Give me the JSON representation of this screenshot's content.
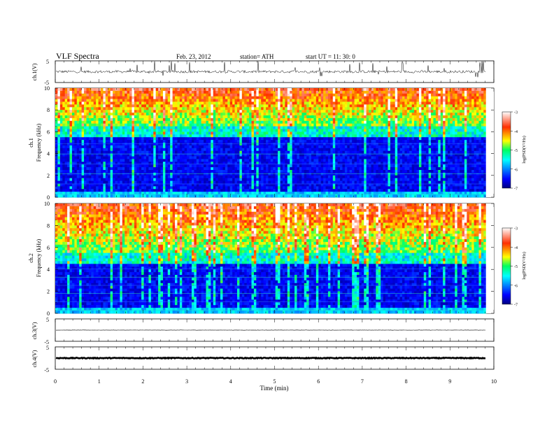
{
  "header": {
    "title": "VLF  Spectra",
    "date": "Feb. 23, 2012",
    "station": "station= ATH",
    "start": "start  UT  =    11: 30: 0"
  },
  "chart_data": [
    {
      "type": "line",
      "panel": "ch1-waveform",
      "ylabel": "ch.1(V)",
      "ylim": [
        -5,
        5
      ],
      "yticks": [
        "5",
        "-5"
      ],
      "baseline": 0,
      "color": "#000000"
    },
    {
      "type": "heatmap",
      "panel": "ch1-spectrogram",
      "ylabel_channel": "ch.1",
      "ylabel": "Frequency  (kHz)",
      "ylim": [
        0,
        10
      ],
      "yticks": [
        "0",
        "2",
        "4",
        "6",
        "8",
        "10"
      ],
      "low_band_top_khz": 6,
      "colorbar": {
        "ticks": [
          "-3",
          "-4",
          "-5",
          "-6",
          "-7"
        ],
        "range": [
          -7,
          -3
        ],
        "label": "log(PSD(V²/Hz)"
      }
    },
    {
      "type": "heatmap",
      "panel": "ch2-spectrogram",
      "ylabel_channel": "ch.2",
      "ylabel": "Frequency  (kHz)",
      "ylim": [
        0,
        10
      ],
      "yticks": [
        "0",
        "2",
        "4",
        "6",
        "8",
        "10"
      ],
      "low_band_top_khz": 5,
      "colorbar": {
        "ticks": [
          "-3",
          "-4",
          "-5",
          "-6",
          "-7"
        ],
        "range": [
          -7,
          -3
        ],
        "label": "log(PSD(V²/Hz)"
      }
    },
    {
      "type": "line",
      "panel": "ch3-waveform",
      "ylabel": "ch.3(V)",
      "ylim": [
        -5,
        5
      ],
      "yticks": [
        "5",
        "-5"
      ],
      "baseline": 0,
      "color": "#000000"
    },
    {
      "type": "line",
      "panel": "ch4-waveform",
      "ylabel": "ch.4(V)",
      "ylim": [
        -5,
        5
      ],
      "yticks": [
        "5",
        "-5"
      ],
      "baseline": 0,
      "color": "#000000"
    }
  ],
  "x_axis": {
    "label": "Time  (min)",
    "range": [
      0,
      10
    ],
    "data_end": 9.82,
    "ticks": [
      "0",
      "1",
      "2",
      "3",
      "4",
      "5",
      "6",
      "7",
      "8",
      "9",
      "10"
    ]
  }
}
